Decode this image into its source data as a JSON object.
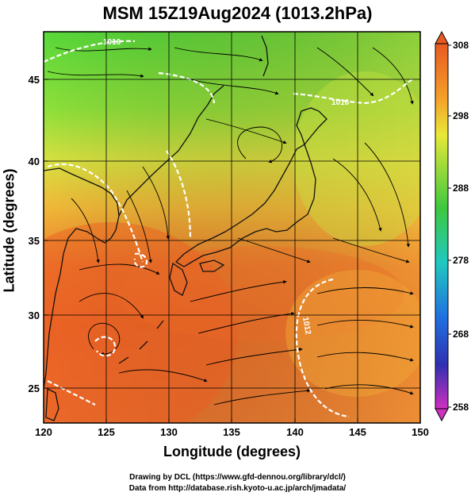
{
  "title": "MSM 15Z19Aug2024 (1013.2hPa)",
  "xlabel": "Longitude (degrees)",
  "ylabel": "Latitude  (degrees)",
  "credits": [
    "Drawing by DCL (https://www.gfd-dennou.org/library/dcl/)",
    "Data from http://database.rish.kyoto-u.ac.jp/arch/jmadata/"
  ],
  "map": {
    "lon_range": [
      120,
      150
    ],
    "lat_range": [
      22.4,
      47.6
    ],
    "lon_ticks": [
      "120",
      "125",
      "130",
      "135",
      "140",
      "145",
      "150"
    ],
    "lat_ticks": [
      "25",
      "30",
      "35",
      "40",
      "45"
    ],
    "gridlines": true
  },
  "colorbar": {
    "min": 258,
    "max": 308,
    "ticks": [
      "308",
      "298",
      "288",
      "278",
      "268",
      "258"
    ],
    "colors": [
      "#e85a20",
      "#f5a02a",
      "#e8e838",
      "#3ec83e",
      "#20c8c0",
      "#2070e0",
      "#3030b0",
      "#d030c0"
    ]
  },
  "contour_labels": [
    "1016",
    "1016",
    "1012"
  ],
  "colors": {
    "warm": "#e8682a",
    "mid": "#f0c040",
    "cool": "#5cd83c",
    "contour": "#ffffff",
    "streamline": "#000000"
  }
}
